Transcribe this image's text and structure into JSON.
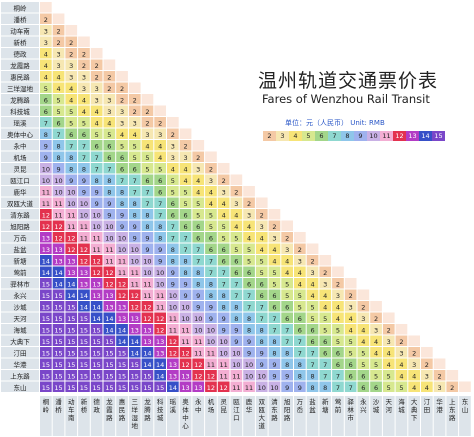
{
  "title": "温州轨道交通票价表",
  "subtitle": "Fares of Wenzhou Rail Transit",
  "legend_label": "单位：元（人民币） Unit: RMB",
  "legend": [
    {
      "value": "2",
      "color": "#f4c9a5"
    },
    {
      "value": "3",
      "color": "#f6e7b2"
    },
    {
      "value": "4",
      "color": "#f7e477"
    },
    {
      "value": "5",
      "color": "#d7e88f"
    },
    {
      "value": "6",
      "color": "#a3d68a"
    },
    {
      "value": "7",
      "color": "#8fd8d0"
    },
    {
      "value": "8",
      "color": "#8fc6ea"
    },
    {
      "value": "9",
      "color": "#9fb2ee"
    },
    {
      "value": "10",
      "color": "#c9b1e5"
    },
    {
      "value": "11",
      "color": "#f3aed3"
    },
    {
      "value": "12",
      "color": "#e3324f"
    },
    {
      "value": "13",
      "color": "#b33cc5"
    },
    {
      "value": "14",
      "color": "#3750c8"
    },
    {
      "value": "15",
      "color": "#7a47c9"
    }
  ],
  "stations": [
    "桐岭",
    "潘桥",
    "动车南",
    "新桥",
    "德政",
    "龙霞路",
    "惠民路",
    "三垟湿地",
    "龙腾路",
    "科技城",
    "瑶溪",
    "奥体中心",
    "永中",
    "机场",
    "灵昆",
    "瓯江口",
    "鹿华",
    "双瓯大道",
    "清东路",
    "旭阳路",
    "万岙",
    "盐盆",
    "新塘",
    "莺前",
    "驿林市",
    "永兴",
    "沙城",
    "天河",
    "海城",
    "大典下",
    "汀田",
    "华港",
    "上东路",
    "东山"
  ],
  "chart_data": {
    "type": "table",
    "row_labels": [
      "桐岭",
      "潘桥",
      "动车南",
      "新桥",
      "德政",
      "龙霞路",
      "惠民路",
      "三垟湿地",
      "龙腾路",
      "科技城",
      "瑶溪",
      "奥体中心",
      "永中",
      "机场",
      "灵昆",
      "瓯江口",
      "鹿华",
      "双瓯大道",
      "清东路",
      "旭阳路",
      "万岙",
      "盐盆",
      "新塘",
      "莺前",
      "驿林市",
      "永兴",
      "沙城",
      "天河",
      "海城",
      "大典下",
      "汀田",
      "华港",
      "上东路",
      "东山"
    ],
    "col_labels": [
      "桐岭",
      "潘桥",
      "动车南",
      "新桥",
      "德政",
      "龙霞路",
      "惠民路",
      "三垟湿地",
      "龙腾路",
      "科技城",
      "瑶溪",
      "奥体中心",
      "永中",
      "机场",
      "灵昆",
      "瓯江口",
      "鹿华",
      "双瓯大道",
      "清东路",
      "旭阳路",
      "万岙",
      "盐盆",
      "新塘",
      "莺前",
      "驿林市",
      "永兴",
      "沙城",
      "天河",
      "海城",
      "大典下",
      "汀田",
      "华港",
      "上东路",
      "东山"
    ],
    "values": [
      [],
      [
        2
      ],
      [
        3,
        2
      ],
      [
        3,
        2,
        2
      ],
      [
        4,
        3,
        2,
        2
      ],
      [
        4,
        3,
        3,
        2,
        2
      ],
      [
        4,
        4,
        3,
        3,
        2,
        2
      ],
      [
        5,
        4,
        4,
        3,
        3,
        2,
        2
      ],
      [
        6,
        5,
        4,
        4,
        3,
        3,
        2,
        2
      ],
      [
        6,
        5,
        5,
        4,
        4,
        3,
        3,
        2,
        2
      ],
      [
        7,
        6,
        5,
        5,
        4,
        4,
        3,
        3,
        2,
        2
      ],
      [
        8,
        7,
        6,
        6,
        5,
        5,
        4,
        4,
        3,
        3,
        2
      ],
      [
        9,
        8,
        7,
        7,
        6,
        6,
        5,
        5,
        4,
        4,
        3,
        2
      ],
      [
        9,
        8,
        8,
        7,
        7,
        6,
        6,
        5,
        5,
        4,
        3,
        3,
        2
      ],
      [
        10,
        9,
        8,
        8,
        7,
        7,
        6,
        6,
        5,
        5,
        4,
        4,
        3,
        2
      ],
      [
        10,
        10,
        9,
        9,
        8,
        8,
        7,
        7,
        6,
        6,
        5,
        4,
        4,
        3,
        2
      ],
      [
        11,
        10,
        10,
        9,
        9,
        8,
        8,
        7,
        7,
        6,
        5,
        5,
        4,
        4,
        3,
        2
      ],
      [
        11,
        11,
        10,
        10,
        9,
        9,
        8,
        8,
        7,
        7,
        6,
        5,
        5,
        4,
        4,
        3,
        2
      ],
      [
        12,
        11,
        11,
        10,
        10,
        9,
        9,
        8,
        8,
        7,
        6,
        6,
        5,
        5,
        4,
        4,
        3,
        2
      ],
      [
        12,
        12,
        11,
        11,
        10,
        10,
        9,
        9,
        8,
        8,
        7,
        6,
        6,
        5,
        5,
        4,
        4,
        3,
        2
      ],
      [
        13,
        12,
        12,
        11,
        11,
        10,
        10,
        9,
        9,
        8,
        7,
        7,
        6,
        6,
        5,
        5,
        4,
        4,
        3,
        2
      ],
      [
        13,
        13,
        12,
        12,
        11,
        11,
        10,
        10,
        9,
        9,
        8,
        7,
        7,
        6,
        6,
        5,
        5,
        4,
        4,
        3,
        2
      ],
      [
        14,
        13,
        13,
        12,
        12,
        11,
        11,
        10,
        10,
        9,
        8,
        8,
        7,
        7,
        6,
        6,
        5,
        5,
        4,
        4,
        3,
        2
      ],
      [
        14,
        14,
        13,
        13,
        12,
        12,
        11,
        11,
        10,
        10,
        9,
        8,
        8,
        7,
        7,
        6,
        6,
        5,
        5,
        4,
        4,
        3,
        2
      ],
      [
        15,
        14,
        14,
        13,
        13,
        12,
        12,
        11,
        11,
        10,
        9,
        9,
        8,
        8,
        7,
        7,
        6,
        6,
        5,
        5,
        4,
        4,
        3,
        2
      ],
      [
        15,
        15,
        14,
        14,
        13,
        13,
        12,
        12,
        11,
        11,
        10,
        9,
        9,
        8,
        8,
        7,
        7,
        6,
        6,
        5,
        5,
        4,
        4,
        3,
        2
      ],
      [
        15,
        15,
        15,
        14,
        14,
        13,
        13,
        12,
        12,
        11,
        10,
        10,
        9,
        9,
        8,
        8,
        7,
        7,
        6,
        6,
        5,
        5,
        4,
        4,
        3,
        2
      ],
      [
        15,
        15,
        15,
        15,
        14,
        14,
        13,
        13,
        12,
        12,
        11,
        10,
        10,
        9,
        9,
        8,
        8,
        7,
        7,
        6,
        6,
        5,
        5,
        4,
        4,
        3,
        2
      ],
      [
        15,
        15,
        15,
        15,
        15,
        14,
        14,
        13,
        13,
        12,
        11,
        11,
        10,
        10,
        9,
        9,
        8,
        8,
        7,
        7,
        6,
        6,
        5,
        5,
        4,
        4,
        3,
        2
      ],
      [
        15,
        15,
        15,
        15,
        15,
        15,
        14,
        14,
        13,
        13,
        12,
        11,
        11,
        10,
        10,
        9,
        9,
        8,
        8,
        7,
        7,
        6,
        6,
        5,
        5,
        4,
        4,
        3,
        2
      ],
      [
        15,
        15,
        15,
        15,
        15,
        15,
        15,
        14,
        14,
        13,
        12,
        12,
        11,
        11,
        10,
        10,
        9,
        9,
        8,
        8,
        7,
        7,
        6,
        6,
        5,
        5,
        4,
        4,
        3,
        2
      ],
      [
        15,
        15,
        15,
        15,
        15,
        15,
        15,
        15,
        14,
        14,
        13,
        12,
        12,
        11,
        11,
        10,
        10,
        9,
        9,
        8,
        8,
        7,
        7,
        6,
        6,
        5,
        5,
        4,
        4,
        3,
        2
      ],
      [
        15,
        15,
        15,
        15,
        15,
        15,
        15,
        15,
        15,
        14,
        13,
        13,
        12,
        12,
        11,
        11,
        10,
        10,
        9,
        9,
        8,
        8,
        7,
        7,
        6,
        6,
        5,
        5,
        4,
        4,
        3,
        2
      ],
      [
        15,
        15,
        15,
        15,
        15,
        15,
        15,
        15,
        15,
        15,
        14,
        13,
        13,
        12,
        12,
        11,
        11,
        10,
        10,
        9,
        9,
        8,
        8,
        7,
        7,
        6,
        6,
        5,
        5,
        4,
        4,
        3,
        2
      ]
    ]
  }
}
